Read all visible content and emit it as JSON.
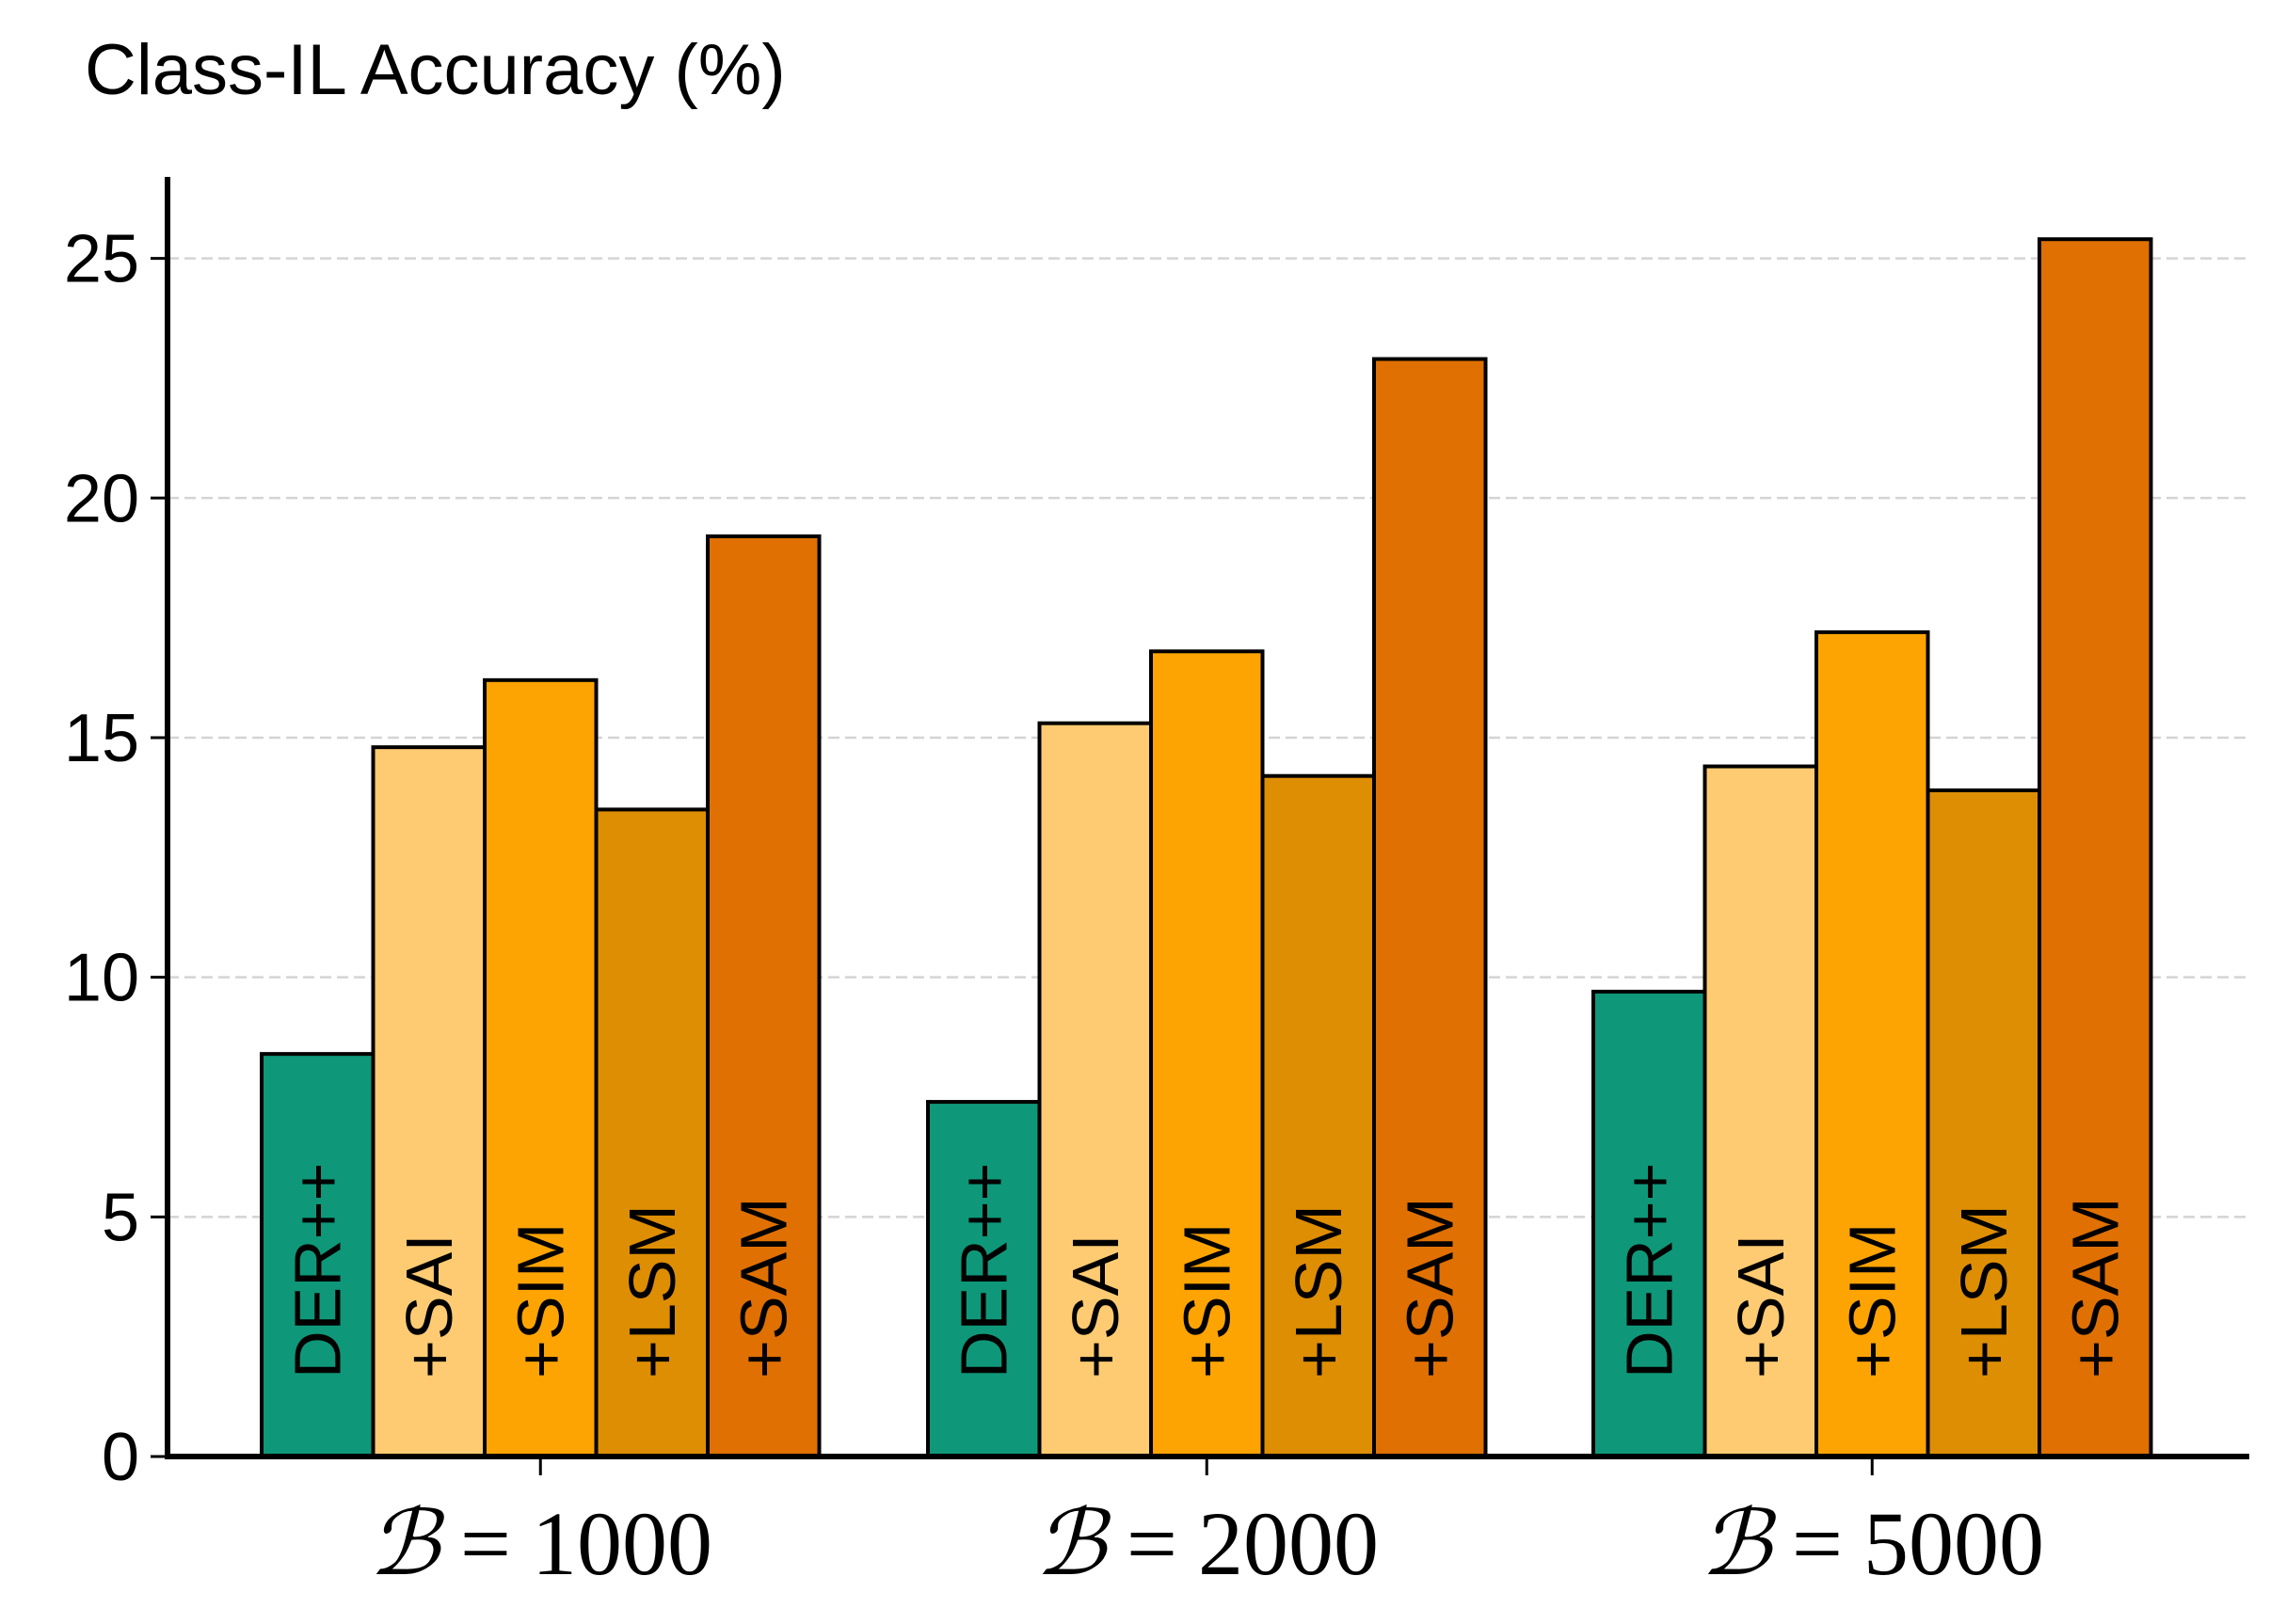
{
  "chart_data": {
    "type": "bar",
    "title": "Class-IL Accuracy (%)",
    "xlabel": "",
    "ylabel": "",
    "categories": [
      {
        "symbol": "ℬ",
        "equals": "=",
        "value": "1000"
      },
      {
        "symbol": "ℬ",
        "equals": "=",
        "value": "2000"
      },
      {
        "symbol": "ℬ",
        "equals": "=",
        "value": "5000"
      }
    ],
    "series": [
      {
        "name": "DER++",
        "color": "#0e9879",
        "values": [
          8.4,
          7.4,
          9.7
        ]
      },
      {
        "name": "+SAI",
        "color": "#fecb72",
        "values": [
          14.8,
          15.3,
          14.4
        ]
      },
      {
        "name": "+SIM",
        "color": "#fea402",
        "values": [
          16.2,
          16.8,
          17.2
        ]
      },
      {
        "name": "+LSM",
        "color": "#de8e03",
        "values": [
          13.5,
          14.2,
          13.9
        ]
      },
      {
        "name": "+SAM",
        "color": "#df7001",
        "values": [
          19.2,
          22.9,
          25.4
        ]
      }
    ],
    "ylim": [
      0,
      26.7
    ],
    "yticks": [
      "0",
      "5",
      "10",
      "15",
      "20",
      "25"
    ],
    "grid": "horizontal dashed",
    "legend": "none (series names written inside bars)"
  }
}
